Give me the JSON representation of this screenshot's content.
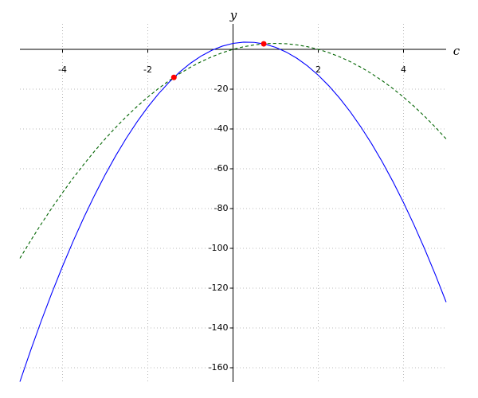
{
  "chart_data": {
    "type": "line",
    "x_label": "c",
    "y_label": "y",
    "xlim": [
      -5,
      5
    ],
    "ylim": [
      -167.2,
      12.8
    ],
    "xticks": [
      -4,
      -2,
      2,
      4
    ],
    "yticks": [
      -20,
      -40,
      -60,
      -80,
      -100,
      -120,
      -140,
      -160
    ],
    "grid": true,
    "x": [
      -5,
      -4.75,
      -4.5,
      -4.25,
      -4,
      -3.75,
      -3.5,
      -3.25,
      -3,
      -2.75,
      -2.5,
      -2.25,
      -2,
      -1.75,
      -1.5,
      -1.25,
      -1,
      -0.75,
      -0.5,
      -0.25,
      0,
      0.25,
      0.5,
      0.75,
      1,
      1.25,
      1.5,
      1.75,
      2,
      2.25,
      2.5,
      2.75,
      3,
      3.25,
      3.5,
      3.75,
      4,
      4.25,
      4.5,
      4.75,
      5
    ],
    "series": [
      {
        "color": "#0000ff",
        "dashed": false,
        "values": [
          -167,
          -151.375,
          -136.5,
          -122.375,
          -109,
          -96.375,
          -84.5,
          -73.375,
          -63,
          -53.375,
          -44.5,
          -36.375,
          -29,
          -22.375,
          -16.5,
          -11.375,
          -7,
          -3.375,
          -0.5,
          1.625,
          3,
          3.625,
          3.5,
          2.625,
          1,
          -1.375,
          -4.5,
          -8.375,
          -13,
          -18.375,
          -24.5,
          -31.375,
          -39,
          -47.375,
          -56.5,
          -66.375,
          -77,
          -88.375,
          -100.5,
          -113.375,
          -127
        ]
      },
      {
        "color": "#006400",
        "dashed": true,
        "values": [
          -105,
          -96.1875,
          -87.75,
          -79.6875,
          -72,
          -64.6875,
          -57.75,
          -51.1875,
          -45,
          -39.1875,
          -33.75,
          -28.6875,
          -24,
          -19.6875,
          -15.75,
          -12.1875,
          -9,
          -6.1875,
          -3.75,
          -1.6875,
          0,
          1.3125,
          2.25,
          2.8125,
          3,
          2.8125,
          2.25,
          1.3125,
          0,
          -1.6875,
          -3.75,
          -6.1875,
          -9,
          -12.1875,
          -15.75,
          -19.6875,
          -24,
          -28.6875,
          -33.75,
          -39.1875,
          -45
        ]
      }
    ],
    "markers": {
      "color": "#ff0000",
      "x": [
        -1.387,
        0.721
      ],
      "y": [
        -14.09,
        2.766
      ]
    }
  }
}
